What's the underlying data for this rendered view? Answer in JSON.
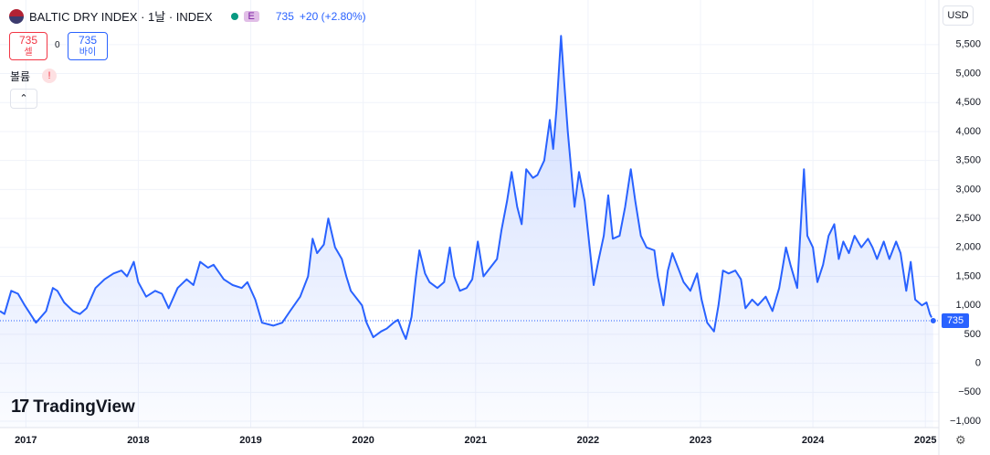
{
  "chart_data": {
    "type": "line",
    "title": "BALTIC DRY INDEX · 1날 · INDEX",
    "badge": "E",
    "price": 735,
    "change": "+20 (+2.80%)",
    "sell": {
      "price": 735,
      "label": "셀"
    },
    "spread": 0,
    "buy": {
      "price": 735,
      "label": "바이"
    },
    "volume_label": "볼륨",
    "currency": "USD",
    "brand": "TradingView",
    "last_value": 735,
    "color": "#2962ff",
    "grid": true,
    "x": [
      2016.77,
      2016.81,
      2016.87,
      2016.93,
      2016.99,
      2017.09,
      2017.18,
      2017.24,
      2017.28,
      2017.34,
      2017.42,
      2017.48,
      2017.54,
      2017.62,
      2017.7,
      2017.78,
      2017.85,
      2017.9,
      2017.96,
      2018.0,
      2018.07,
      2018.15,
      2018.21,
      2018.27,
      2018.35,
      2018.43,
      2018.49,
      2018.55,
      2018.62,
      2018.67,
      2018.76,
      2018.84,
      2018.92,
      2018.97,
      2019.04,
      2019.1,
      2019.2,
      2019.28,
      2019.35,
      2019.44,
      2019.51,
      2019.55,
      2019.59,
      2019.65,
      2019.69,
      2019.75,
      2019.81,
      2019.85,
      2019.89,
      2019.95,
      2019.99,
      2020.03,
      2020.09,
      2020.16,
      2020.21,
      2020.27,
      2020.31,
      2020.35,
      2020.38,
      2020.43,
      2020.47,
      2020.5,
      2020.55,
      2020.59,
      2020.66,
      2020.72,
      2020.77,
      2020.81,
      2020.86,
      2020.92,
      2020.97,
      2021.02,
      2021.07,
      2021.13,
      2021.19,
      2021.23,
      2021.28,
      2021.32,
      2021.37,
      2021.41,
      2021.45,
      2021.51,
      2021.55,
      2021.61,
      2021.66,
      2021.69,
      2021.72,
      2021.76,
      2021.79,
      2021.82,
      2021.88,
      2021.92,
      2021.97,
      2022.02,
      2022.05,
      2022.09,
      2022.14,
      2022.18,
      2022.22,
      2022.28,
      2022.33,
      2022.38,
      2022.42,
      2022.47,
      2022.52,
      2022.59,
      2022.62,
      2022.67,
      2022.71,
      2022.75,
      2022.8,
      2022.85,
      2022.91,
      2022.97,
      2023.01,
      2023.06,
      2023.12,
      2023.16,
      2023.2,
      2023.25,
      2023.31,
      2023.36,
      2023.4,
      2023.46,
      2023.51,
      2023.58,
      2023.64,
      2023.7,
      2023.76,
      2023.8,
      2023.86,
      2023.92,
      2023.95,
      2024.0,
      2024.04,
      2024.09,
      2024.14,
      2024.19,
      2024.23,
      2024.27,
      2024.32,
      2024.37,
      2024.43,
      2024.49,
      2024.53,
      2024.57,
      2024.63,
      2024.68,
      2024.74,
      2024.78,
      2024.83,
      2024.87,
      2024.91,
      2024.97,
      2025.01,
      2025.04,
      2025.07
    ],
    "values": [
      900,
      850,
      1250,
      1200,
      1000,
      700,
      900,
      1300,
      1250,
      1050,
      900,
      850,
      950,
      1300,
      1450,
      1550,
      1600,
      1500,
      1750,
      1400,
      1150,
      1250,
      1200,
      950,
      1300,
      1450,
      1350,
      1750,
      1650,
      1700,
      1450,
      1350,
      1300,
      1400,
      1100,
      700,
      650,
      700,
      900,
      1150,
      1500,
      2150,
      1900,
      2050,
      2500,
      2000,
      1800,
      1500,
      1250,
      1100,
      1000,
      700,
      450,
      550,
      600,
      700,
      750,
      550,
      420,
      800,
      1500,
      1950,
      1550,
      1400,
      1300,
      1400,
      2000,
      1500,
      1250,
      1300,
      1450,
      2100,
      1500,
      1650,
      1800,
      2300,
      2800,
      3300,
      2700,
      2400,
      3350,
      3200,
      3250,
      3500,
      4200,
      3700,
      4400,
      5650,
      4800,
      4000,
      2700,
      3300,
      2800,
      1900,
      1350,
      1750,
      2200,
      2900,
      2150,
      2200,
      2700,
      3350,
      2800,
      2200,
      2000,
      1950,
      1500,
      1000,
      1600,
      1900,
      1650,
      1400,
      1250,
      1550,
      1100,
      700,
      550,
      1000,
      1600,
      1550,
      1600,
      1450,
      950,
      1100,
      1000,
      1150,
      900,
      1300,
      2000,
      1700,
      1300,
      3350,
      2200,
      2000,
      1400,
      1700,
      2200,
      2400,
      1800,
      2100,
      1900,
      2200,
      2000,
      2150,
      2000,
      1800,
      2100,
      1800,
      2100,
      1900,
      1250,
      1750,
      1100,
      1000,
      1050,
      850,
      735
    ],
    "xlim": [
      2016.77,
      2025.12
    ],
    "xticks": [
      2017,
      2018,
      2019,
      2020,
      2021,
      2022,
      2023,
      2024,
      2025
    ],
    "ylim": [
      -1110,
      6270
    ],
    "yticks": [
      {
        "value": -1000,
        "label": "−1,000"
      },
      {
        "value": -500,
        "label": "−500"
      },
      0,
      500,
      {
        "value": 1000,
        "label": "1,000"
      },
      {
        "value": 1500,
        "label": "1,500"
      },
      {
        "value": 2000,
        "label": "2,000"
      },
      {
        "value": 2500,
        "label": "2,500"
      },
      {
        "value": 3000,
        "label": "3,000"
      },
      {
        "value": 3500,
        "label": "3,500"
      },
      {
        "value": 4000,
        "label": "4,000"
      },
      {
        "value": 4500,
        "label": "4,500"
      },
      {
        "value": 5000,
        "label": "5,000"
      },
      {
        "value": 5500,
        "label": "5,500"
      }
    ]
  }
}
